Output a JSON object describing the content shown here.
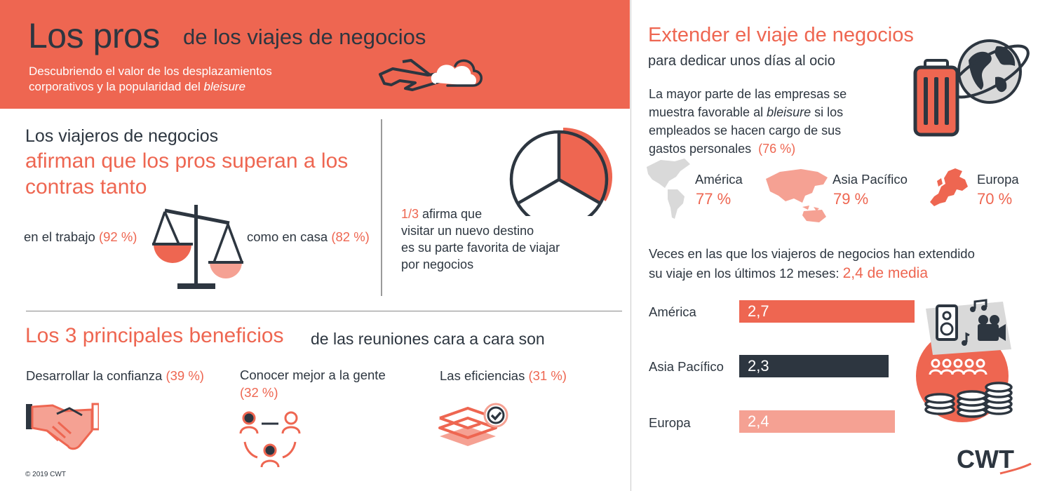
{
  "header": {
    "title_big": "Los pros",
    "title_rest": "de los viajes de negocios",
    "subtitle_line1": "Descubriendo el valor de los desplazamientos",
    "subtitle_line2_prefix": "corporativos y la popularidad del ",
    "subtitle_line2_italic": "bleisure"
  },
  "pros": {
    "line1": "Los viajeros de negocios",
    "line2": "afirman que los pros superan a los",
    "line3": "contras tanto",
    "work_label": "en el trabajo",
    "work_value": "(92 %)",
    "home_label": "como en casa",
    "home_value": "(82 %)",
    "fraction": "1/3",
    "fraction_text": " afirma que",
    "destination_line2": "visitar un nuevo destino",
    "destination_line3": "es su parte favorita de viajar",
    "destination_line4": "por negocios",
    "pie_highlight_fraction": 0.333
  },
  "benefits": {
    "title_a": "Los 3 principales beneficios",
    "title_b": "de las reuniones cara a cara son",
    "items": [
      {
        "label": "Desarrollar la confianza",
        "value": "(39 %)"
      },
      {
        "label": "Conocer mejor a la gente",
        "value": "(32 %)"
      },
      {
        "label": "Las eficiencias",
        "value": "(31 %)"
      }
    ]
  },
  "copyright": "© 2019 CWT",
  "bleisure": {
    "title": "Extender el viaje de negocios",
    "subtitle": "para dedicar unos días al ocio",
    "para_line1": "La mayor parte de las empresas se",
    "para_line2_prefix": "muestra favorable al ",
    "para_line2_italic": "bleisure",
    "para_line2_suffix": " si los",
    "para_line3": "empleados se hacen cargo de sus",
    "para_line4": "gastos personales",
    "para_value": "(76 %)",
    "regions": [
      {
        "name": "América",
        "value": "77 %"
      },
      {
        "name": "Asia Pacífico",
        "value": "79 %"
      },
      {
        "name": "Europa",
        "value": "70 %"
      }
    ]
  },
  "extensions": {
    "line1": "Veces en las que los viajeros de negocios han extendido",
    "line2": "su viaje en los últimos 12 meses: ",
    "average": "2,4 de media"
  },
  "chart_data": {
    "type": "bar",
    "orientation": "horizontal",
    "categories": [
      "América",
      "Asia Pacífico",
      "Europa"
    ],
    "values": [
      2.7,
      2.3,
      2.4
    ],
    "value_labels": [
      "2,7",
      "2,3",
      "2,4"
    ],
    "colors": [
      "#ee6651",
      "#2d3640",
      "#f5a193"
    ]
  },
  "logo_text": "CWT",
  "colors": {
    "accent": "#ee6651",
    "dark": "#2d3640",
    "light_accent": "#f5a193",
    "gray": "#d9d9d9"
  }
}
